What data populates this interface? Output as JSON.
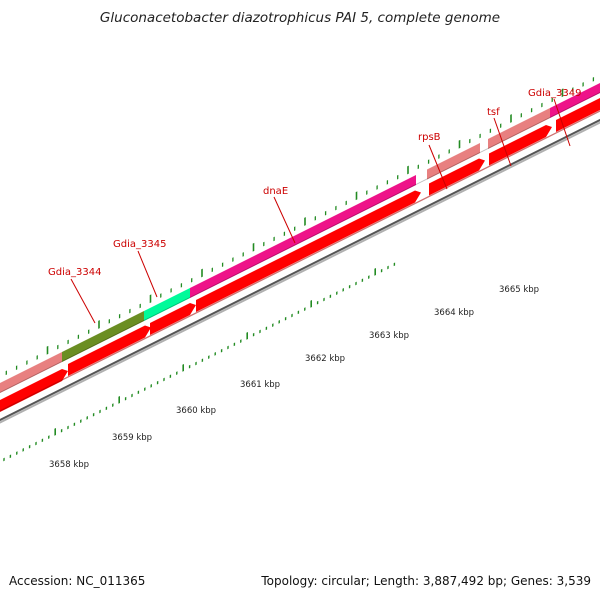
{
  "title": "Gluconacetobacter diazotrophicus PAI 5, complete genome",
  "footer": {
    "accession": "Accession: NC_011365",
    "summary": "Topology: circular; Length: 3,887,492 bp; Genes: 3,539"
  },
  "gene_labels": [
    "Gdia_3344",
    "Gdia_3345",
    "dnaE",
    "rpsB",
    "tsf",
    "Gdia_3349"
  ],
  "scale_labels": [
    "3658 kbp",
    "3659 kbp",
    "3660 kbp",
    "3661 kbp",
    "3662 kbp",
    "3663 kbp",
    "3664 kbp",
    "3665 kbp"
  ],
  "colors": {
    "gene_red": "#ff0000",
    "pseudo_pink": "#e88080",
    "magenta": "#ee1289",
    "olive": "#6b8e23",
    "mint": "#00fa9a",
    "label_red": "#cc0000",
    "tick_green": "#228b22",
    "backbone": "#808080"
  }
}
